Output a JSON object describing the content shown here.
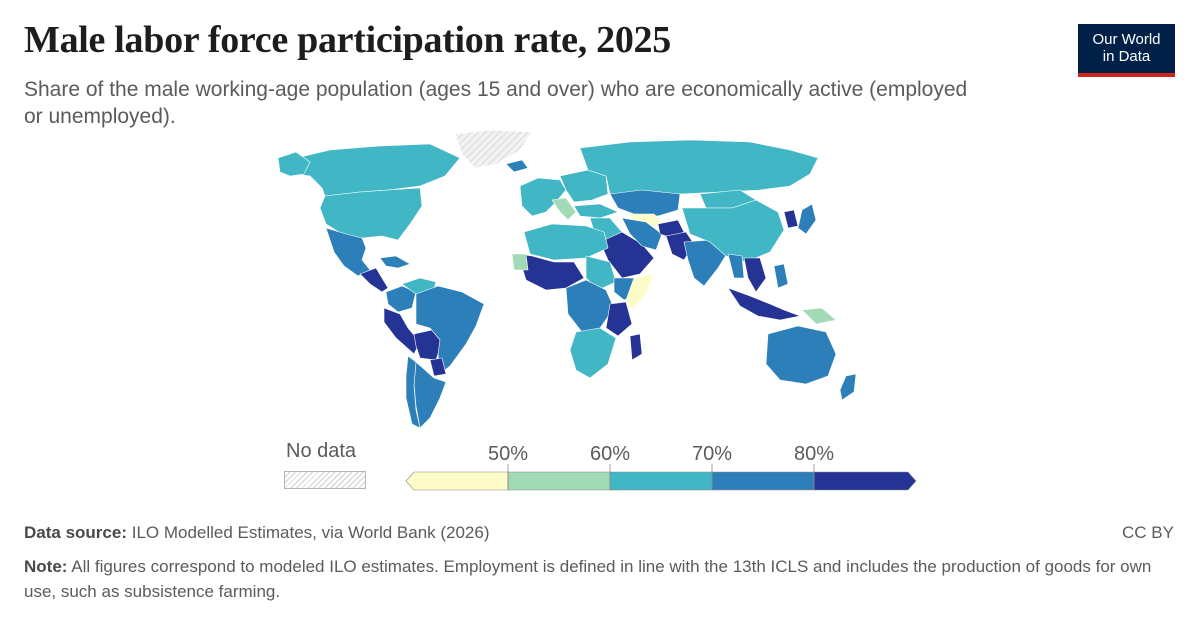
{
  "header": {
    "title": "Male labor force participation rate, 2025",
    "subtitle": "Share of the male working-age population (ages 15 and over) who are economically active (employed or unemployed)."
  },
  "logo": {
    "line1": "Our World",
    "line2": "in Data"
  },
  "legend": {
    "no_data_label": "No data",
    "ticks": [
      "50%",
      "60%",
      "70%",
      "80%"
    ],
    "colors": [
      "#fdfcc8",
      "#a1dab4",
      "#41b6c4",
      "#2c7fb8",
      "#253494"
    ],
    "no_data_color": "#e8e8e8"
  },
  "footer": {
    "source_label": "Data source:",
    "source_text": "ILO Modelled Estimates, via World Bank (2026)",
    "license": "CC BY",
    "note_label": "Note:",
    "note_text": "All figures correspond to modeled ILO estimates. Employment is defined in line with the 13th ICLS and includes the production of goods for own use, such as subsistence farming."
  },
  "regions": [
    {
      "name": "Canada",
      "bin": 2
    },
    {
      "name": "United States",
      "bin": 2
    },
    {
      "name": "Alaska",
      "bin": 2
    },
    {
      "name": "Greenland",
      "bin": -1
    },
    {
      "name": "Mexico",
      "bin": 3
    },
    {
      "name": "Central America",
      "bin": 4
    },
    {
      "name": "Caribbean",
      "bin": 3
    },
    {
      "name": "Colombia",
      "bin": 3
    },
    {
      "name": "Venezuela",
      "bin": 2
    },
    {
      "name": "Peru",
      "bin": 4
    },
    {
      "name": "Bolivia",
      "bin": 4
    },
    {
      "name": "Brazil",
      "bin": 3
    },
    {
      "name": "Paraguay",
      "bin": 4
    },
    {
      "name": "Argentina",
      "bin": 3
    },
    {
      "name": "Chile",
      "bin": 3
    },
    {
      "name": "Iceland",
      "bin": 3
    },
    {
      "name": "Western Europe",
      "bin": 2
    },
    {
      "name": "Italy",
      "bin": 1
    },
    {
      "name": "Eastern Europe",
      "bin": 2
    },
    {
      "name": "Russia",
      "bin": 2
    },
    {
      "name": "Kazakhstan",
      "bin": 3
    },
    {
      "name": "Uzbekistan",
      "bin": 0
    },
    {
      "name": "Turkey",
      "bin": 2
    },
    {
      "name": "Middle East",
      "bin": 2
    },
    {
      "name": "Saudi Arabia",
      "bin": 4
    },
    {
      "name": "Iran",
      "bin": 3
    },
    {
      "name": "Afghanistan",
      "bin": 4
    },
    {
      "name": "Pakistan",
      "bin": 4
    },
    {
      "name": "India",
      "bin": 3
    },
    {
      "name": "Mongolia",
      "bin": 2
    },
    {
      "name": "China",
      "bin": 2
    },
    {
      "name": "Korea",
      "bin": 4
    },
    {
      "name": "Japan",
      "bin": 3
    },
    {
      "name": "Myanmar",
      "bin": 3
    },
    {
      "name": "Vietnam",
      "bin": 4
    },
    {
      "name": "Indonesia",
      "bin": 4
    },
    {
      "name": "Philippines",
      "bin": 3
    },
    {
      "name": "Papua New Guinea",
      "bin": 1
    },
    {
      "name": "North Africa",
      "bin": 2
    },
    {
      "name": "West Africa",
      "bin": 4
    },
    {
      "name": "Senegal",
      "bin": 1
    },
    {
      "name": "Sudan",
      "bin": 2
    },
    {
      "name": "Ethiopia",
      "bin": 3
    },
    {
      "name": "Somalia",
      "bin": 0
    },
    {
      "name": "Central Africa",
      "bin": 3
    },
    {
      "name": "Tanzania",
      "bin": 4
    },
    {
      "name": "Southern Africa",
      "bin": 2
    },
    {
      "name": "Madagascar",
      "bin": 4
    },
    {
      "name": "Australia",
      "bin": 3
    },
    {
      "name": "New Zealand",
      "bin": 3
    }
  ]
}
